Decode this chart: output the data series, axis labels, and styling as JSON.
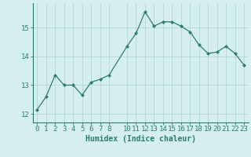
{
  "x": [
    0,
    1,
    2,
    3,
    4,
    5,
    6,
    7,
    8,
    10,
    11,
    12,
    13,
    14,
    15,
    16,
    17,
    18,
    19,
    20,
    21,
    22,
    23
  ],
  "y": [
    12.15,
    12.6,
    13.35,
    13.0,
    13.0,
    12.65,
    13.1,
    13.2,
    13.35,
    14.35,
    14.8,
    15.55,
    15.05,
    15.2,
    15.2,
    15.05,
    14.85,
    14.4,
    14.1,
    14.15,
    14.35,
    14.1,
    13.7
  ],
  "xlabel": "Humidex (Indice chaleur)",
  "xtick_positions": [
    0,
    1,
    2,
    3,
    4,
    5,
    6,
    7,
    8,
    10,
    11,
    12,
    13,
    14,
    15,
    16,
    17,
    18,
    19,
    20,
    21,
    22,
    23
  ],
  "xtick_labels": [
    "0",
    "1",
    "2",
    "3",
    "4",
    "5",
    "6",
    "7",
    "8",
    "10",
    "11",
    "12",
    "13",
    "14",
    "15",
    "16",
    "17",
    "18",
    "19",
    "20",
    "21",
    "22",
    "23"
  ],
  "yticks": [
    12,
    13,
    14,
    15
  ],
  "ylim": [
    11.7,
    15.85
  ],
  "xlim": [
    -0.5,
    23.5
  ],
  "line_color": "#2d7d6e",
  "marker_color": "#2d7d6e",
  "bg_color": "#d4efed",
  "grid_color": "#b2d8d4",
  "label_fontsize": 7,
  "tick_fontsize": 6.5,
  "xlabel_fontweight": "bold"
}
